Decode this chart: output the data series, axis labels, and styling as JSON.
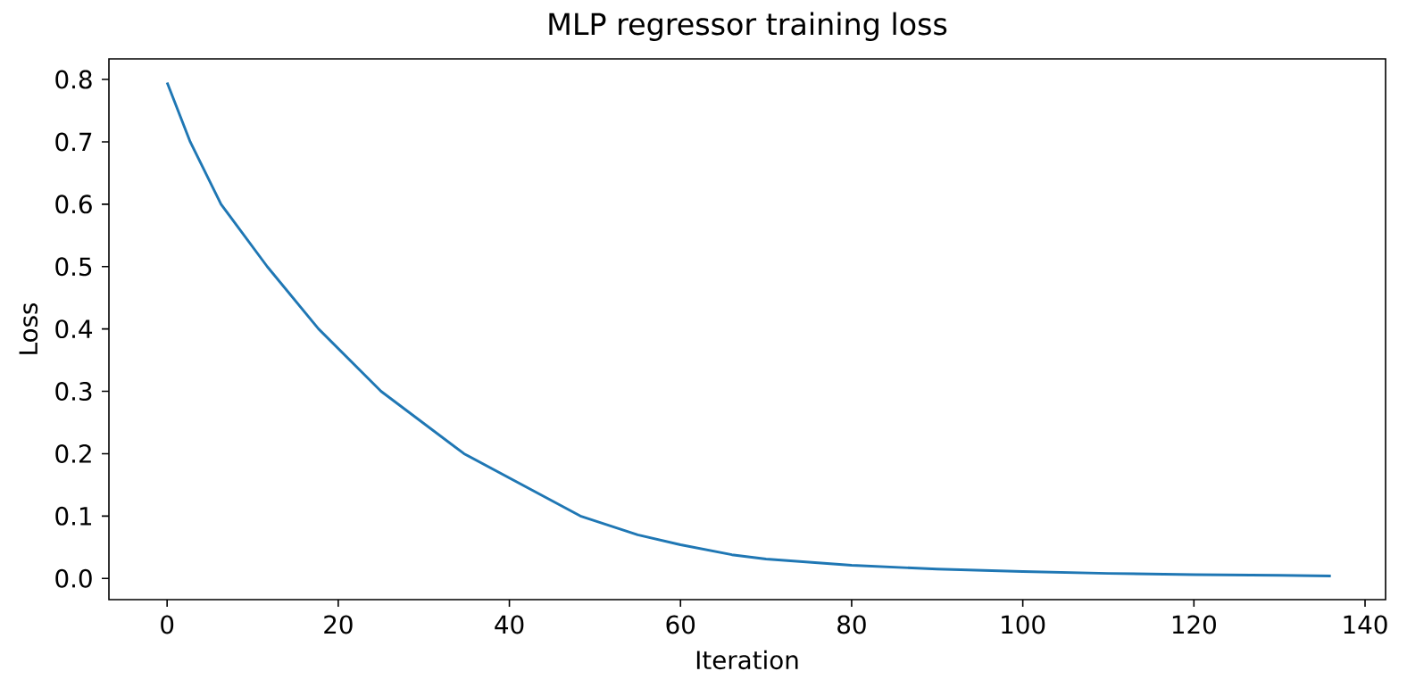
{
  "chart_data": {
    "type": "line",
    "title": "MLP regressor training loss",
    "xlabel": "Iteration",
    "ylabel": "Loss",
    "x": [
      0,
      2.7,
      6.3,
      11.7,
      17.7,
      25,
      34.7,
      48.3,
      55,
      60,
      66,
      70,
      80,
      90,
      100,
      110,
      120,
      130,
      136
    ],
    "series": [
      {
        "color": "#1f77b4",
        "values": [
          0.795,
          0.7,
          0.6,
          0.5,
          0.4,
          0.3,
          0.2,
          0.1,
          0.07,
          0.054,
          0.038,
          0.031,
          0.021,
          0.015,
          0.011,
          0.008,
          0.006,
          0.005,
          0.004
        ]
      }
    ],
    "xlim": [
      -6.8,
      142.4
    ],
    "ylim": [
      -0.034,
      0.833
    ],
    "xticks": [
      0,
      20,
      40,
      60,
      80,
      100,
      120,
      140
    ],
    "yticks": [
      {
        "value": 0,
        "label": "0.0"
      },
      0.1,
      0.2,
      0.3,
      0.4,
      0.5,
      0.6,
      0.7,
      0.8
    ],
    "grid": false,
    "marker": "none",
    "line_style": "solid"
  }
}
